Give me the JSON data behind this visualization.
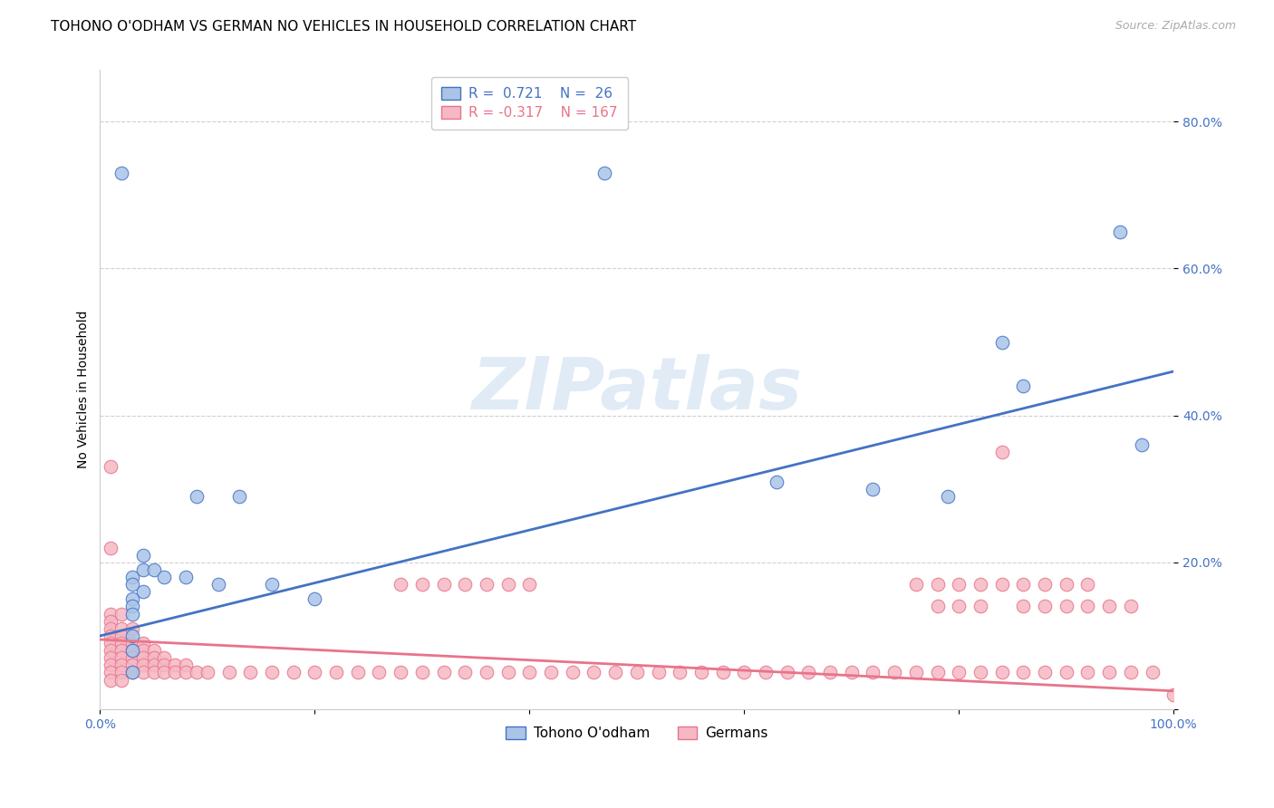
{
  "title": "TOHONO O'ODHAM VS GERMAN NO VEHICLES IN HOUSEHOLD CORRELATION CHART",
  "source": "Source: ZipAtlas.com",
  "ylabel": "No Vehicles in Household",
  "xlim": [
    0.0,
    1.0
  ],
  "ylim": [
    0.0,
    0.87
  ],
  "xticks": [
    0.0,
    0.2,
    0.4,
    0.6,
    0.8,
    1.0
  ],
  "xtick_labels": [
    "0.0%",
    "",
    "",
    "",
    "",
    "100.0%"
  ],
  "yticks": [
    0.0,
    0.2,
    0.4,
    0.6,
    0.8
  ],
  "ytick_labels": [
    "",
    "20.0%",
    "40.0%",
    "60.0%",
    "80.0%"
  ],
  "watermark": "ZIPatlas",
  "legend_blue_r": "0.721",
  "legend_blue_n": "26",
  "legend_pink_r": "-0.317",
  "legend_pink_n": "167",
  "legend_label_blue": "Tohono O'odham",
  "legend_label_pink": "Germans",
  "blue_color": "#aac4e8",
  "pink_color": "#f5b8c4",
  "blue_line_color": "#4472c4",
  "pink_line_color": "#e8748a",
  "blue_scatter": [
    [
      0.02,
      0.73
    ],
    [
      0.03,
      0.18
    ],
    [
      0.03,
      0.17
    ],
    [
      0.03,
      0.15
    ],
    [
      0.03,
      0.14
    ],
    [
      0.03,
      0.13
    ],
    [
      0.03,
      0.1
    ],
    [
      0.03,
      0.08
    ],
    [
      0.03,
      0.05
    ],
    [
      0.04,
      0.21
    ],
    [
      0.04,
      0.19
    ],
    [
      0.04,
      0.16
    ],
    [
      0.05,
      0.19
    ],
    [
      0.06,
      0.18
    ],
    [
      0.08,
      0.18
    ],
    [
      0.09,
      0.29
    ],
    [
      0.11,
      0.17
    ],
    [
      0.13,
      0.29
    ],
    [
      0.16,
      0.17
    ],
    [
      0.2,
      0.15
    ],
    [
      0.47,
      0.73
    ],
    [
      0.63,
      0.31
    ],
    [
      0.72,
      0.3
    ],
    [
      0.79,
      0.29
    ],
    [
      0.84,
      0.5
    ],
    [
      0.86,
      0.44
    ],
    [
      0.95,
      0.65
    ],
    [
      0.97,
      0.36
    ]
  ],
  "pink_scatter": [
    [
      0.01,
      0.33
    ],
    [
      0.01,
      0.22
    ],
    [
      0.01,
      0.13
    ],
    [
      0.01,
      0.12
    ],
    [
      0.01,
      0.11
    ],
    [
      0.01,
      0.1
    ],
    [
      0.01,
      0.09
    ],
    [
      0.01,
      0.08
    ],
    [
      0.01,
      0.07
    ],
    [
      0.01,
      0.06
    ],
    [
      0.01,
      0.05
    ],
    [
      0.01,
      0.04
    ],
    [
      0.02,
      0.13
    ],
    [
      0.02,
      0.11
    ],
    [
      0.02,
      0.1
    ],
    [
      0.02,
      0.09
    ],
    [
      0.02,
      0.08
    ],
    [
      0.02,
      0.07
    ],
    [
      0.02,
      0.06
    ],
    [
      0.02,
      0.05
    ],
    [
      0.02,
      0.04
    ],
    [
      0.03,
      0.11
    ],
    [
      0.03,
      0.09
    ],
    [
      0.03,
      0.08
    ],
    [
      0.03,
      0.07
    ],
    [
      0.03,
      0.06
    ],
    [
      0.03,
      0.05
    ],
    [
      0.04,
      0.09
    ],
    [
      0.04,
      0.08
    ],
    [
      0.04,
      0.07
    ],
    [
      0.04,
      0.06
    ],
    [
      0.04,
      0.05
    ],
    [
      0.05,
      0.08
    ],
    [
      0.05,
      0.07
    ],
    [
      0.05,
      0.06
    ],
    [
      0.05,
      0.05
    ],
    [
      0.06,
      0.07
    ],
    [
      0.06,
      0.06
    ],
    [
      0.06,
      0.05
    ],
    [
      0.07,
      0.06
    ],
    [
      0.07,
      0.05
    ],
    [
      0.08,
      0.06
    ],
    [
      0.08,
      0.05
    ],
    [
      0.09,
      0.05
    ],
    [
      0.1,
      0.05
    ],
    [
      0.12,
      0.05
    ],
    [
      0.14,
      0.05
    ],
    [
      0.16,
      0.05
    ],
    [
      0.18,
      0.05
    ],
    [
      0.2,
      0.05
    ],
    [
      0.22,
      0.05
    ],
    [
      0.24,
      0.05
    ],
    [
      0.26,
      0.05
    ],
    [
      0.28,
      0.17
    ],
    [
      0.28,
      0.05
    ],
    [
      0.3,
      0.17
    ],
    [
      0.3,
      0.05
    ],
    [
      0.32,
      0.17
    ],
    [
      0.32,
      0.05
    ],
    [
      0.34,
      0.17
    ],
    [
      0.34,
      0.05
    ],
    [
      0.36,
      0.17
    ],
    [
      0.36,
      0.05
    ],
    [
      0.38,
      0.17
    ],
    [
      0.38,
      0.05
    ],
    [
      0.4,
      0.17
    ],
    [
      0.4,
      0.05
    ],
    [
      0.42,
      0.05
    ],
    [
      0.44,
      0.05
    ],
    [
      0.46,
      0.05
    ],
    [
      0.48,
      0.05
    ],
    [
      0.5,
      0.05
    ],
    [
      0.52,
      0.05
    ],
    [
      0.54,
      0.05
    ],
    [
      0.56,
      0.05
    ],
    [
      0.58,
      0.05
    ],
    [
      0.6,
      0.05
    ],
    [
      0.62,
      0.05
    ],
    [
      0.64,
      0.05
    ],
    [
      0.66,
      0.05
    ],
    [
      0.68,
      0.05
    ],
    [
      0.7,
      0.05
    ],
    [
      0.72,
      0.05
    ],
    [
      0.74,
      0.05
    ],
    [
      0.76,
      0.17
    ],
    [
      0.76,
      0.05
    ],
    [
      0.78,
      0.17
    ],
    [
      0.78,
      0.14
    ],
    [
      0.78,
      0.05
    ],
    [
      0.8,
      0.17
    ],
    [
      0.8,
      0.14
    ],
    [
      0.8,
      0.05
    ],
    [
      0.82,
      0.17
    ],
    [
      0.82,
      0.14
    ],
    [
      0.82,
      0.05
    ],
    [
      0.84,
      0.35
    ],
    [
      0.84,
      0.17
    ],
    [
      0.84,
      0.05
    ],
    [
      0.86,
      0.17
    ],
    [
      0.86,
      0.14
    ],
    [
      0.86,
      0.05
    ],
    [
      0.88,
      0.17
    ],
    [
      0.88,
      0.14
    ],
    [
      0.88,
      0.05
    ],
    [
      0.9,
      0.17
    ],
    [
      0.9,
      0.14
    ],
    [
      0.9,
      0.05
    ],
    [
      0.92,
      0.17
    ],
    [
      0.92,
      0.14
    ],
    [
      0.92,
      0.05
    ],
    [
      0.94,
      0.14
    ],
    [
      0.94,
      0.05
    ],
    [
      0.96,
      0.14
    ],
    [
      0.96,
      0.05
    ],
    [
      0.98,
      0.05
    ],
    [
      1.0,
      0.02
    ]
  ],
  "blue_line_x": [
    0.0,
    1.0
  ],
  "blue_line_y": [
    0.1,
    0.46
  ],
  "pink_line_x": [
    0.0,
    1.0
  ],
  "pink_line_y": [
    0.095,
    0.025
  ],
  "title_fontsize": 11,
  "axis_fontsize": 10,
  "tick_fontsize": 10,
  "legend_fontsize": 11,
  "source_fontsize": 9
}
